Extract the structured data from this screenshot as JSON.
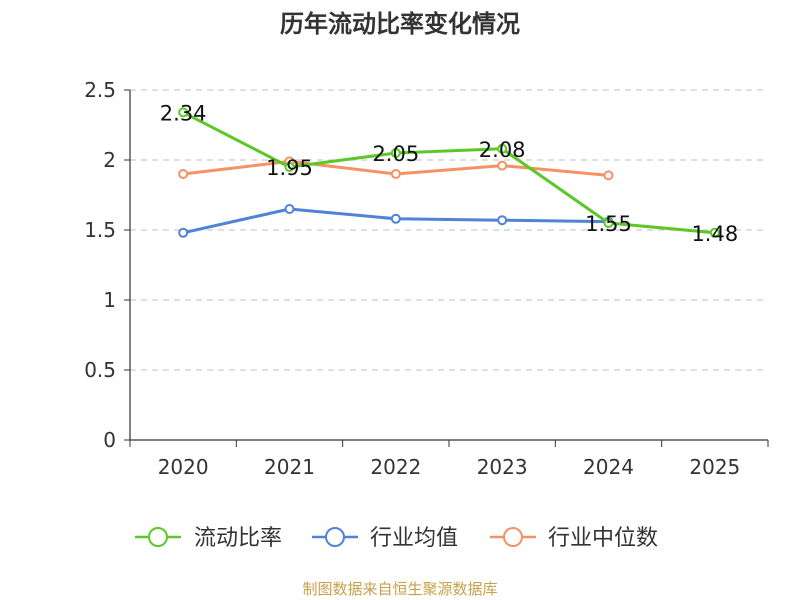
{
  "chart_data": {
    "type": "line",
    "title": "历年流动比率变化情况",
    "categories": [
      "2020",
      "2021",
      "2022",
      "2023",
      "2024",
      "2025"
    ],
    "ylim": [
      0,
      2.5
    ],
    "yticks": [
      "0",
      "0.5",
      "1",
      "1.5",
      "2",
      "2.5"
    ],
    "series": [
      {
        "name": "流动比率",
        "color": "#5cc828",
        "values": [
          2.34,
          1.95,
          2.05,
          2.08,
          1.55,
          1.48
        ],
        "labels": [
          "2.34",
          "1.95",
          "2.05",
          "2.08",
          "1.55",
          "1.48"
        ]
      },
      {
        "name": "行业均值",
        "color": "#4f82d8",
        "values": [
          1.48,
          1.65,
          1.58,
          1.57,
          1.56,
          null
        ]
      },
      {
        "name": "行业中位数",
        "color": "#f59263",
        "values": [
          1.9,
          1.99,
          1.9,
          1.96,
          1.89,
          null
        ]
      }
    ],
    "legend_position": "bottom",
    "grid": true
  },
  "source": "制图数据来自恒生聚源数据库"
}
